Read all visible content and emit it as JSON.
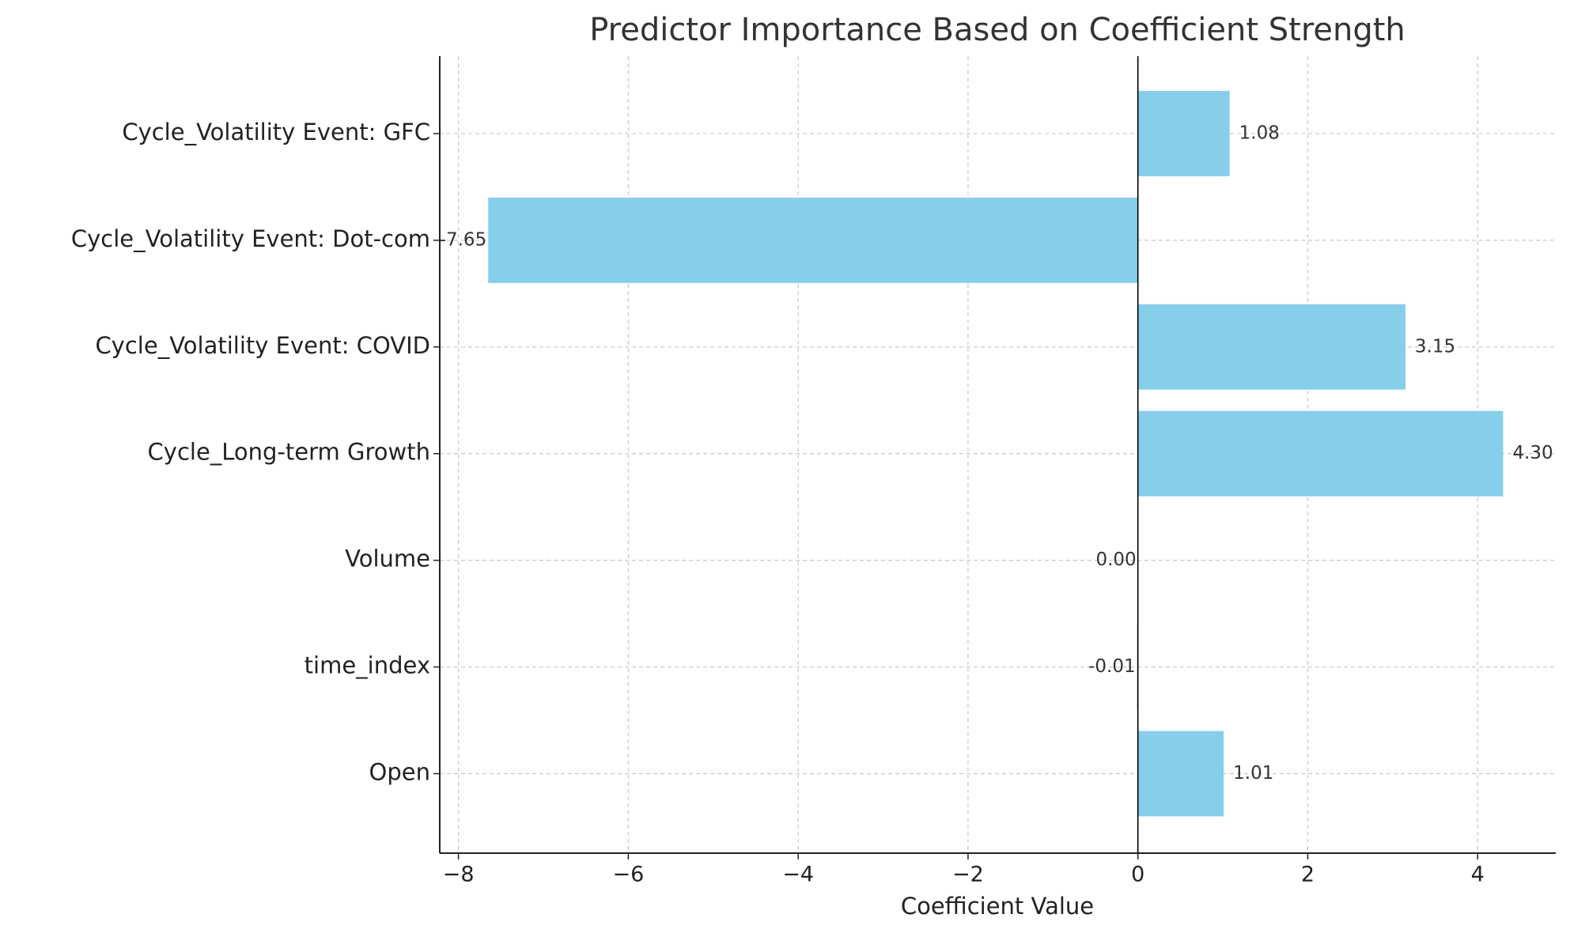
{
  "chart_data": {
    "type": "barh",
    "title": "Predictor Importance Based on Coefficient Strength",
    "x_label": "Coefficient Value",
    "categories": [
      "Open",
      "time_index",
      "Volume",
      "Cycle_Long-term Growth",
      "Cycle_Volatility Event: COVID",
      "Cycle_Volatility Event: Dot-com",
      "Cycle_Volatility Event: GFC"
    ],
    "values": [
      1.01,
      -0.01,
      0.0,
      4.3,
      3.15,
      -7.65,
      1.08
    ],
    "value_labels": [
      "1.01",
      "-0.01",
      "0.00",
      "4.30",
      "3.15",
      "-7.65",
      "1.08"
    ],
    "color": "#87ceeb",
    "xlim": [
      -8.22,
      4.92
    ],
    "xticks": [
      {
        "value": -8,
        "label": "−8"
      },
      {
        "value": -6,
        "label": "−6"
      },
      {
        "value": -4,
        "label": "−4"
      },
      {
        "value": -2,
        "label": "−2"
      },
      0,
      2,
      4
    ],
    "grid": true
  }
}
